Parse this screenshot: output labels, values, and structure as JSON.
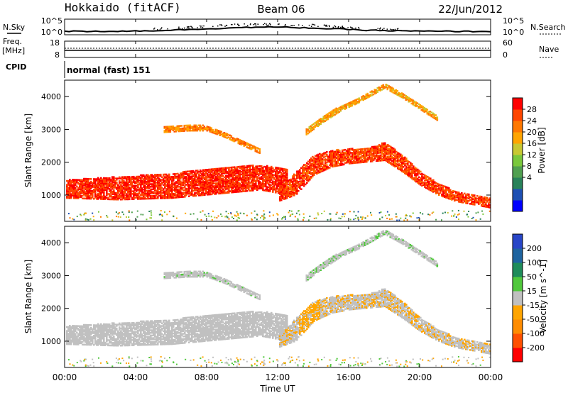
{
  "header": {
    "radar": "Hokkaido (fitACF)",
    "beam": "Beam 06",
    "date": "22/Jun/2012"
  },
  "strips": {
    "nsky_label": "N.Sky",
    "nsky_ticks": [
      "10^5",
      "10^0"
    ],
    "nsearch_label": "N.Search",
    "freq_label_1": "Freq.",
    "freq_label_2": "[MHz]",
    "freq_ticks": [
      "18",
      "8"
    ],
    "nave_label": "Nave",
    "nave_ticks": [
      "60",
      "0"
    ],
    "cpid_label": "CPID",
    "cpid_value": "normal (fast) 151"
  },
  "chart_data": {
    "type": "heatmap",
    "xlabel": "Time UT",
    "x_ticks": [
      "00:00",
      "04:00",
      "08:00",
      "12:00",
      "16:00",
      "20:00",
      "00:00"
    ],
    "xlim_hours": [
      0,
      24
    ],
    "ylabel": "Slant Range [km]",
    "y_ticks": [
      1000,
      2000,
      3000,
      4000
    ],
    "ylim_km": [
      200,
      4500
    ],
    "panels": [
      {
        "name": "power",
        "colorbar_label": "Power [dB]",
        "colorbar_ticks": [
          "28",
          "24",
          "20",
          "16",
          "12",
          "8",
          "4"
        ],
        "colors": [
          "#0000ff",
          "#1e50b4",
          "#28825a",
          "#50a050",
          "#7ac83c",
          "#c8c832",
          "#ffa500",
          "#ff7800",
          "#ff4600",
          "#ff0000"
        ]
      },
      {
        "name": "velocity",
        "colorbar_label": "Velocity [m s^-1]",
        "colorbar_ticks": [
          "200",
          "100",
          "50",
          "15",
          "-15",
          "-50",
          "-100",
          "-200"
        ],
        "colors": [
          "#ff0000",
          "#ff5000",
          "#ff8c00",
          "#ffa500",
          "#c0c0c0",
          "#50c83c",
          "#1e8c5a",
          "#1e64a0",
          "#2846c8"
        ]
      }
    ],
    "echo_regions": [
      {
        "name": "near-range ionospheric band",
        "t": [
          0,
          3,
          6,
          9,
          11,
          12.5
        ],
        "r_lo": [
          900,
          850,
          900,
          1050,
          1150,
          1000
        ],
        "r_hi": [
          1450,
          1550,
          1650,
          1850,
          1900,
          1800
        ],
        "power": 27,
        "velocity": 0
      },
      {
        "name": "rising band",
        "t": [
          12,
          13,
          14,
          15,
          16,
          17,
          18,
          19,
          20,
          21,
          22,
          24
        ],
        "r_lo": [
          800,
          1000,
          1600,
          1850,
          1950,
          2000,
          2050,
          1700,
          1300,
          1000,
          800,
          600
        ],
        "r_hi": [
          1100,
          1700,
          2200,
          2350,
          2400,
          2400,
          2600,
          2200,
          1700,
          1350,
          1100,
          900
        ],
        "power": 26,
        "velocity": -10
      },
      {
        "name": "upper arc",
        "t": [
          13.5,
          14.5,
          15.5,
          16.5,
          17.5,
          18,
          19,
          20,
          21
        ],
        "r_lo": [
          2800,
          3200,
          3550,
          3800,
          4100,
          4250,
          3950,
          3600,
          3250
        ],
        "r_hi": [
          3000,
          3400,
          3700,
          3950,
          4250,
          4400,
          4100,
          3750,
          3400
        ],
        "power": 20,
        "velocity": 8
      },
      {
        "name": "morning arc",
        "t": [
          5.5,
          7,
          8,
          9,
          10,
          11
        ],
        "r_lo": [
          2900,
          2950,
          2950,
          2750,
          2500,
          2250
        ],
        "r_hi": [
          3100,
          3150,
          3100,
          2900,
          2650,
          2400
        ],
        "power": 22,
        "velocity": 5
      }
    ]
  }
}
